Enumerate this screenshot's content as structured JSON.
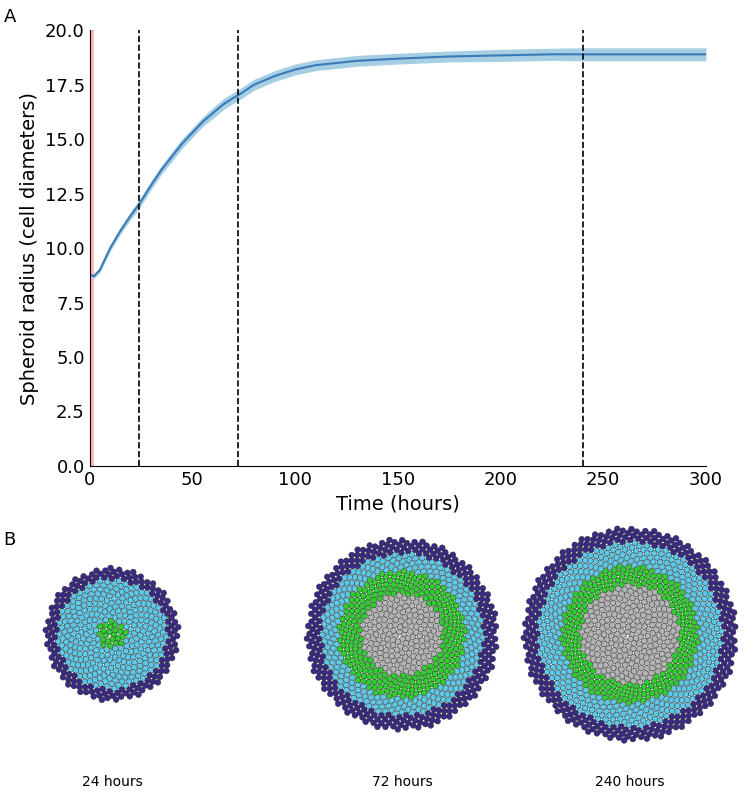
{
  "chart_data": {
    "type": "line",
    "title": "A",
    "x_label": "Time (hours)",
    "y_label": "Spheroid radius (cell diameters)",
    "x": [
      0,
      2,
      5,
      10,
      15,
      20,
      24,
      30,
      35,
      40,
      45,
      50,
      55,
      60,
      65,
      70,
      72,
      80,
      90,
      100,
      110,
      120,
      130,
      140,
      150,
      175,
      200,
      225,
      240,
      260,
      280,
      300
    ],
    "series": [
      {
        "name": "Spheroid radius",
        "color": "#3a7ab8",
        "values": [
          8.8,
          8.7,
          9.0,
          10.0,
          10.8,
          11.5,
          12.0,
          12.9,
          13.6,
          14.2,
          14.8,
          15.3,
          15.8,
          16.2,
          16.6,
          16.9,
          17.0,
          17.5,
          17.9,
          18.2,
          18.4,
          18.5,
          18.6,
          18.65,
          18.7,
          18.8,
          18.85,
          18.9,
          18.9,
          18.9,
          18.9,
          18.9
        ],
        "error": [
          0.1,
          0.1,
          0.12,
          0.15,
          0.15,
          0.18,
          0.2,
          0.2,
          0.2,
          0.22,
          0.22,
          0.22,
          0.22,
          0.25,
          0.25,
          0.25,
          0.25,
          0.25,
          0.25,
          0.25,
          0.25,
          0.25,
          0.25,
          0.25,
          0.25,
          0.25,
          0.28,
          0.28,
          0.3,
          0.3,
          0.3,
          0.3
        ],
        "error_color": "#9ecae1"
      }
    ],
    "vlines": [
      24,
      72,
      240
    ],
    "highlight_span": [
      0,
      2
    ],
    "highlight_color": "#ffb6c1",
    "xlim": [
      0,
      300
    ],
    "xticks": [
      0,
      50,
      100,
      150,
      200,
      250,
      300
    ],
    "ylim": [
      0,
      20
    ],
    "yticks": [
      {
        "value": 0,
        "label": "0.0"
      },
      {
        "value": 2.5,
        "label": "2.5"
      },
      {
        "value": 5,
        "label": "5.0"
      },
      {
        "value": 7.5,
        "label": "7.5"
      },
      {
        "value": 10,
        "label": "10.0"
      },
      {
        "value": 12.5,
        "label": "12.5"
      },
      {
        "value": 15,
        "label": "15.0"
      },
      {
        "value": 17.5,
        "label": "17.5"
      },
      {
        "value": 20,
        "label": "20.0"
      }
    ],
    "grid": false
  },
  "diagram": {
    "title": "B",
    "snapshots": [
      "24 hours",
      "72 hours",
      "240 hours"
    ],
    "zone_colors": [
      "#3b2a84",
      "#5ec8e6",
      "#33cc33",
      "#b4b4b4"
    ]
  }
}
